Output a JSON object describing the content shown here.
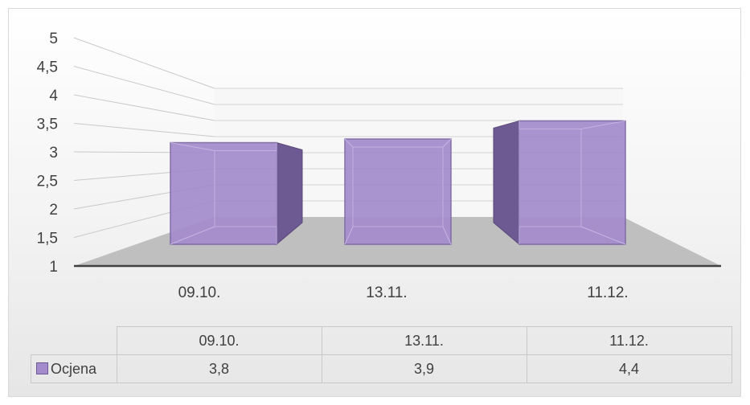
{
  "chart_data": {
    "type": "bar",
    "style": "3d-column",
    "categories": [
      "09.10.",
      "13.11.",
      "11.12."
    ],
    "series": [
      {
        "name": "Ocjena",
        "values": [
          3.8,
          3.9,
          4.4
        ],
        "value_labels": [
          "3,8",
          "3,9",
          "4,4"
        ]
      }
    ],
    "y_ticks": [
      "1",
      "1,5",
      "2",
      "2,5",
      "3",
      "3,5",
      "4",
      "4,5",
      "5"
    ],
    "ylim": [
      1,
      5
    ],
    "grid": true,
    "legend": "data-table",
    "colors": {
      "bar_front": "#a48ccc",
      "bar_side": "#6e5a92",
      "floor": "#bfbfbf",
      "axis": "#404040"
    }
  }
}
